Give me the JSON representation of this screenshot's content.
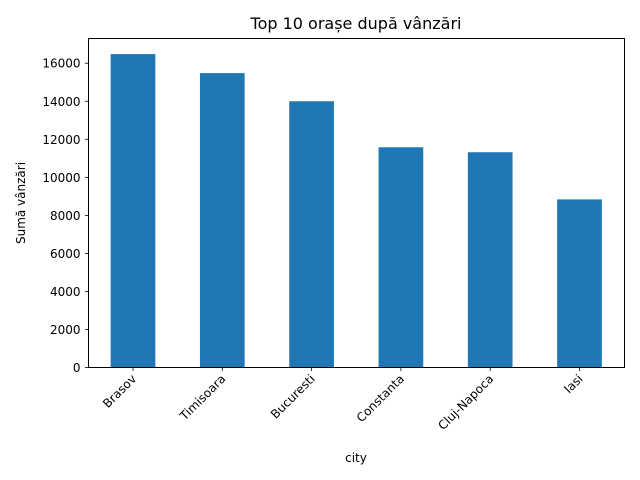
{
  "chart_data": {
    "type": "bar",
    "title": "Top 10 orașe după vânzări",
    "xlabel": "city",
    "ylabel": "Sumă vânzări",
    "categories": [
      "Brasov",
      "Timisoara",
      "Bucuresti",
      "Constanta",
      "Cluj-Napoca",
      "Iasi"
    ],
    "values": [
      16480,
      15480,
      14000,
      11580,
      11320,
      8840
    ],
    "ylim": [
      0,
      17300
    ],
    "yticks": [
      0,
      2000,
      4000,
      6000,
      8000,
      10000,
      12000,
      14000,
      16000
    ],
    "grid": false,
    "bar_color": "#1f77b4"
  }
}
